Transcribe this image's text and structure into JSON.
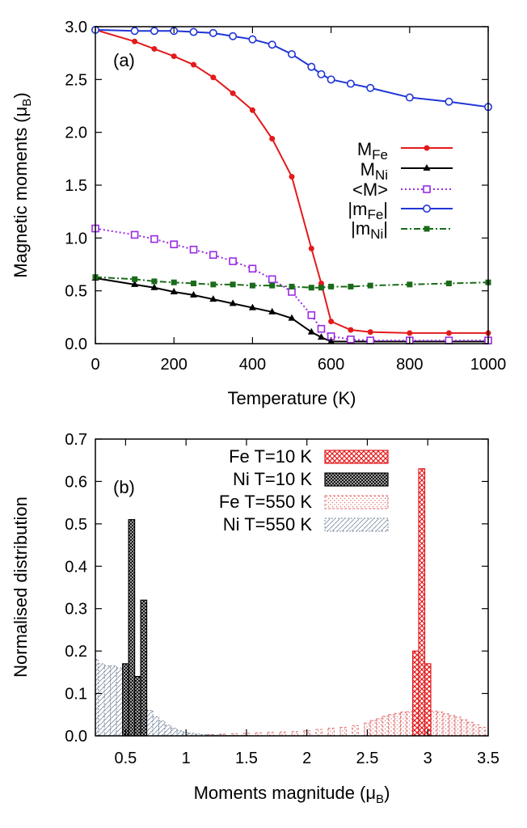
{
  "colors": {
    "M_Fe": "#e31a1c",
    "M_Ni": "#000000",
    "avg_M": "#9a2be2",
    "abs_m_Fe": "#1f35d6",
    "abs_m_Ni": "#1a6b1a",
    "hist_Fe_550": "#e07070",
    "hist_Ni_550": "#7a8aa0"
  },
  "chart_data": [
    {
      "type": "line",
      "panel_label": "(a)",
      "xlabel": "Temperature (K)",
      "ylabel_main": "Magnetic moments (μ",
      "ylabel_sub": "B",
      "ylabel_close": ")",
      "xlim": [
        0,
        1000
      ],
      "ylim": [
        0,
        3.0
      ],
      "xticks": [
        "0",
        "200",
        "400",
        "600",
        "800",
        "1000"
      ],
      "yticks": [
        "0.0",
        "0.5",
        "1.0",
        "1.5",
        "2.0",
        "2.5",
        "3.0"
      ],
      "grid": false,
      "legend_position": "right",
      "series": [
        {
          "key": "M_Fe",
          "name_main": "M",
          "name_sub": "Fe",
          "marker": "filled-circle",
          "line": "solid",
          "x": [
            0,
            100,
            150,
            200,
            250,
            300,
            350,
            400,
            450,
            500,
            550,
            575,
            600,
            650,
            700,
            800,
            900,
            1000
          ],
          "y": [
            2.97,
            2.86,
            2.79,
            2.72,
            2.64,
            2.52,
            2.37,
            2.21,
            1.94,
            1.58,
            0.9,
            0.57,
            0.21,
            0.13,
            0.11,
            0.1,
            0.1,
            0.1
          ]
        },
        {
          "key": "M_Ni",
          "name_main": "M",
          "name_sub": "Ni",
          "marker": "filled-triangle",
          "line": "solid",
          "x": [
            0,
            100,
            150,
            200,
            250,
            300,
            350,
            400,
            450,
            500,
            550,
            575,
            600,
            650,
            700,
            800,
            900,
            1000
          ],
          "y": [
            0.62,
            0.56,
            0.53,
            0.49,
            0.46,
            0.42,
            0.38,
            0.34,
            0.3,
            0.24,
            0.11,
            0.06,
            0.02,
            0.02,
            0.02,
            0.02,
            0.02,
            0.02
          ]
        },
        {
          "key": "avg_M",
          "name_main": "<M>",
          "name_sub": "",
          "marker": "open-square",
          "line": "dotted",
          "x": [
            0,
            100,
            150,
            200,
            250,
            300,
            350,
            400,
            450,
            500,
            550,
            575,
            600,
            650,
            700,
            800,
            900,
            1000
          ],
          "y": [
            1.09,
            1.03,
            0.99,
            0.94,
            0.89,
            0.84,
            0.78,
            0.71,
            0.61,
            0.49,
            0.27,
            0.14,
            0.07,
            0.04,
            0.03,
            0.03,
            0.03,
            0.03
          ]
        },
        {
          "key": "abs_m_Fe",
          "name_main": "|m",
          "name_sub": "Fe",
          "name_close": "|",
          "marker": "open-circle",
          "line": "solid",
          "x": [
            0,
            100,
            150,
            200,
            250,
            300,
            350,
            400,
            450,
            500,
            550,
            575,
            600,
            650,
            700,
            800,
            900,
            1000
          ],
          "y": [
            2.97,
            2.96,
            2.96,
            2.96,
            2.95,
            2.94,
            2.91,
            2.88,
            2.83,
            2.74,
            2.62,
            2.55,
            2.5,
            2.46,
            2.42,
            2.33,
            2.29,
            2.24
          ]
        },
        {
          "key": "abs_m_Ni",
          "name_main": "|m",
          "name_sub": "Ni",
          "name_close": "|",
          "marker": "filled-square",
          "line": "dash-dot",
          "x": [
            0,
            100,
            150,
            200,
            250,
            300,
            350,
            400,
            450,
            500,
            550,
            575,
            600,
            650,
            700,
            800,
            900,
            1000
          ],
          "y": [
            0.63,
            0.61,
            0.59,
            0.58,
            0.57,
            0.56,
            0.56,
            0.55,
            0.55,
            0.54,
            0.53,
            0.53,
            0.54,
            0.54,
            0.55,
            0.56,
            0.57,
            0.58
          ]
        }
      ]
    },
    {
      "type": "bar",
      "panel_label": "(b)",
      "xlabel_main": "Moments magnitude (μ",
      "xlabel_sub": "B",
      "xlabel_close": ")",
      "ylabel": "Normalised distribution",
      "xlim": [
        0.25,
        3.5
      ],
      "ylim": [
        0,
        0.7
      ],
      "xticks": [
        {
          "v": 0.5,
          "label": "0.5"
        },
        {
          "v": 1.0,
          "label": "1"
        },
        {
          "v": 1.5,
          "label": "1.5"
        },
        {
          "v": 2.0,
          "label": "2"
        },
        {
          "v": 2.5,
          "label": "2.5"
        },
        {
          "v": 3.0,
          "label": "3"
        },
        {
          "v": 3.5,
          "label": "3.5"
        }
      ],
      "yticks": [
        "0.0",
        "0.1",
        "0.2",
        "0.3",
        "0.4",
        "0.5",
        "0.6",
        "0.7"
      ],
      "grid": false,
      "legend_position": "top-right",
      "bin_width": 0.05,
      "series": [
        {
          "key": "Fe10",
          "name": "Fe T=10 K",
          "style": "red-crosshatch",
          "x": [
            2.9,
            2.95,
            3.0
          ],
          "values": [
            0.2,
            0.63,
            0.17
          ]
        },
        {
          "key": "Ni10",
          "name": "Ni T=10 K",
          "style": "black-dense",
          "x": [
            0.5,
            0.55,
            0.6,
            0.65
          ],
          "values": [
            0.17,
            0.51,
            0.14,
            0.32
          ]
        },
        {
          "key": "Fe550",
          "name": "Fe T=550 K",
          "style": "red-dotted",
          "x": [
            1.1,
            1.2,
            1.3,
            1.4,
            1.5,
            1.6,
            1.7,
            1.8,
            1.9,
            2.0,
            2.1,
            2.2,
            2.3,
            2.4,
            2.5,
            2.55,
            2.6,
            2.65,
            2.7,
            2.75,
            2.8,
            2.85,
            2.9,
            2.95,
            3.0,
            3.05,
            3.1,
            3.15,
            3.2,
            3.25,
            3.3,
            3.35,
            3.4,
            3.45
          ],
          "values": [
            0.002,
            0.003,
            0.004,
            0.005,
            0.006,
            0.007,
            0.008,
            0.009,
            0.01,
            0.012,
            0.015,
            0.018,
            0.02,
            0.024,
            0.03,
            0.036,
            0.04,
            0.046,
            0.05,
            0.053,
            0.056,
            0.057,
            0.058,
            0.06,
            0.06,
            0.058,
            0.056,
            0.052,
            0.048,
            0.044,
            0.038,
            0.032,
            0.026,
            0.02
          ]
        },
        {
          "key": "Ni550",
          "name": "Ni T=550 K",
          "style": "gray-hatch",
          "x": [
            0.25,
            0.3,
            0.35,
            0.4,
            0.45,
            0.5,
            0.55,
            0.6,
            0.65,
            0.7,
            0.75,
            0.8,
            0.85,
            0.9,
            0.95,
            1.0,
            1.05,
            1.1,
            1.15,
            1.2,
            1.25,
            1.3,
            1.35,
            1.4,
            1.45,
            1.5
          ],
          "values": [
            0.18,
            0.17,
            0.165,
            0.165,
            0.16,
            0.15,
            0.12,
            0.1,
            0.08,
            0.06,
            0.045,
            0.035,
            0.025,
            0.018,
            0.012,
            0.008,
            0.006,
            0.004,
            0.003,
            0.002,
            0.002,
            0.002,
            0.001,
            0.001,
            0.001,
            0.001
          ]
        }
      ]
    }
  ]
}
